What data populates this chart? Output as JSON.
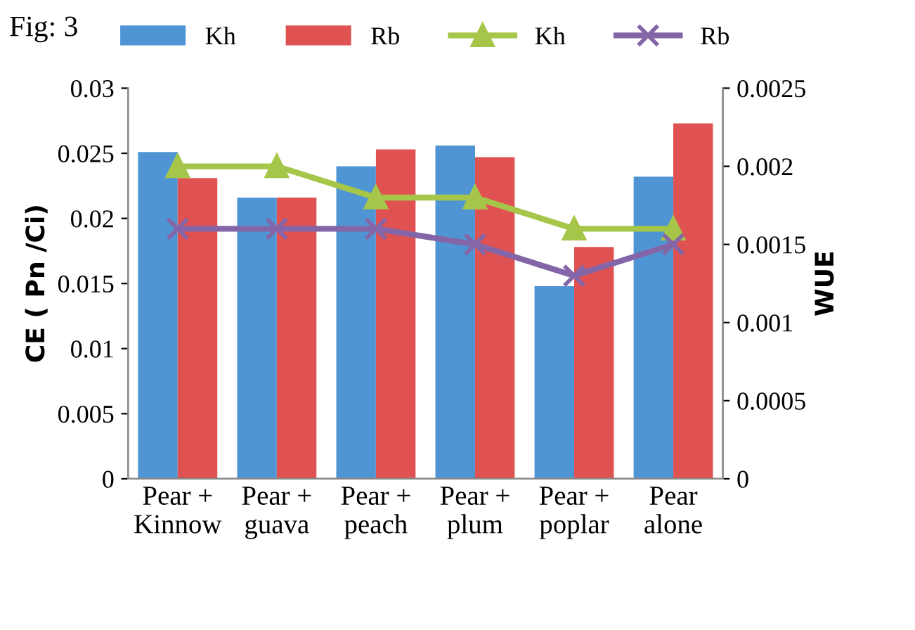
{
  "chart_data": {
    "type": "bar",
    "title": "Fig: 3",
    "ylabel": "CE ( Pn /Ci)",
    "y2label": "WUE",
    "categories": [
      "Pear +\nKinnow",
      "Pear +\nguava",
      "Pear +\npeach",
      "Pear +\nplum",
      "Pear +\npoplar",
      "Pear\nalone"
    ],
    "series": [
      {
        "name": "Kh",
        "color": "#4f95d3",
        "values": [
          0.0251,
          0.0216,
          0.024,
          0.0256,
          0.0148,
          0.0232
        ]
      },
      {
        "name": "Rb",
        "color": "#e05252",
        "values": [
          0.0231,
          0.0216,
          0.0253,
          0.0247,
          0.0178,
          0.0273
        ]
      },
      {
        "name": "Kh",
        "type": "line",
        "axis": "y2",
        "color": "#a6c64a",
        "marker": "triangle",
        "values": [
          0.002,
          0.002,
          0.0018,
          0.0018,
          0.0016,
          0.0016
        ]
      },
      {
        "name": "Rb",
        "type": "line",
        "axis": "y2",
        "color": "#8466a8",
        "marker": "cross",
        "values": [
          0.0016,
          0.0016,
          0.0016,
          0.0015,
          0.0013,
          0.0015
        ]
      }
    ],
    "ylim": [
      0,
      0.03
    ],
    "yticks": [
      0,
      0.005,
      0.01,
      0.015,
      0.02,
      0.025,
      0.03
    ],
    "y2lim": [
      0,
      0.0025
    ],
    "y2ticks": [
      0,
      0.0005,
      0.001,
      0.0015,
      0.002,
      0.0025
    ],
    "legend": "top",
    "grid": false
  }
}
